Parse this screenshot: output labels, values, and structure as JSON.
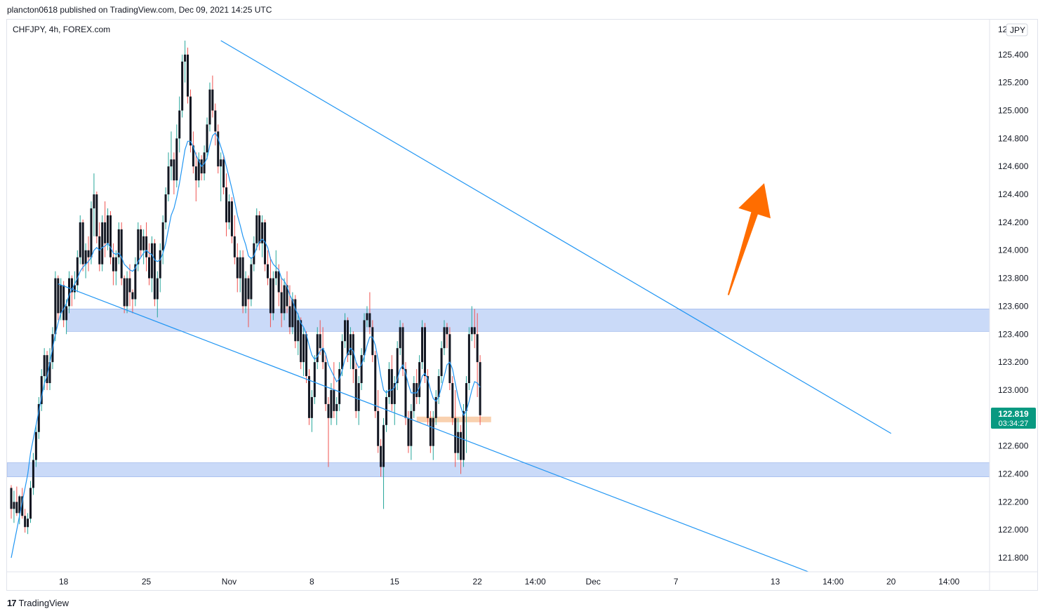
{
  "header": {
    "text": "plancton0618 published on TradingView.com, Dec 09, 2021 14:25 UTC"
  },
  "footer": {
    "brand": "TradingView",
    "logo_glyph": "17"
  },
  "chart_data": {
    "type": "candlestick",
    "symbol_label": "CHFJPY, 4h, FOREX.com",
    "currency_badge": "JPY",
    "currency_badge_partial": "12",
    "y_ticks": [
      "125.400",
      "125.200",
      "125.000",
      "124.800",
      "124.600",
      "124.400",
      "124.200",
      "124.000",
      "123.800",
      "123.600",
      "123.400",
      "123.200",
      "123.000",
      "122.800",
      "122.600",
      "122.400",
      "122.200",
      "122.000",
      "121.800"
    ],
    "y_tick_values": [
      125.4,
      125.2,
      125.0,
      124.8,
      124.6,
      124.4,
      124.2,
      124.0,
      123.8,
      123.6,
      123.4,
      123.2,
      123.0,
      122.8,
      122.6,
      122.4,
      122.2,
      122.0,
      121.8
    ],
    "ylim": [
      121.7,
      125.65
    ],
    "x_ticks": [
      {
        "label": "18",
        "bar": 19
      },
      {
        "label": "25",
        "bar": 49
      },
      {
        "label": "Nov",
        "bar": 79
      },
      {
        "label": "8",
        "bar": 109
      },
      {
        "label": "15",
        "bar": 139
      },
      {
        "label": "22",
        "bar": 169
      },
      {
        "label": "14:00",
        "bar": 190
      },
      {
        "label": "Dec",
        "bar": 211
      },
      {
        "label": "7",
        "bar": 241
      },
      {
        "label": "13",
        "bar": 277
      },
      {
        "label": "14:00",
        "bar": 298
      },
      {
        "label": "20",
        "bar": 319
      },
      {
        "label": "14:00",
        "bar": 340
      }
    ],
    "last_price": "122.819",
    "last_price_value": 122.819,
    "countdown": "03:34:27",
    "colors": {
      "up": "#26a69a",
      "down": "#ef5350",
      "body": "#131722",
      "ma": "#2196f3",
      "zone": "#b8cdf5",
      "zone_border": "#8aa8e8",
      "support_small": "#f8c9a1",
      "arrow": "#ff6d00",
      "trendline": "#2196f3",
      "price_badge": "#089981"
    },
    "ohlc": [
      [
        122.3,
        122.32,
        122.08,
        122.15
      ],
      [
        122.15,
        122.28,
        122.05,
        122.2
      ],
      [
        122.2,
        122.31,
        122.1,
        122.12
      ],
      [
        122.12,
        122.25,
        122.04,
        122.24
      ],
      [
        122.24,
        122.3,
        122.08,
        122.1
      ],
      [
        122.1,
        122.15,
        121.98,
        122.02
      ],
      [
        122.02,
        122.12,
        121.97,
        122.08
      ],
      [
        122.08,
        122.35,
        122.05,
        122.3
      ],
      [
        122.3,
        122.55,
        122.25,
        122.5
      ],
      [
        122.5,
        122.75,
        122.45,
        122.7
      ],
      [
        122.7,
        122.95,
        122.65,
        122.9
      ],
      [
        122.9,
        123.15,
        122.85,
        123.1
      ],
      [
        123.1,
        123.3,
        123.0,
        123.25
      ],
      [
        123.25,
        123.28,
        123.0,
        123.05
      ],
      [
        123.05,
        123.3,
        123.0,
        123.2
      ],
      [
        123.2,
        123.45,
        123.15,
        123.4
      ],
      [
        123.4,
        123.85,
        123.35,
        123.8
      ],
      [
        123.8,
        123.82,
        123.5,
        123.55
      ],
      [
        123.55,
        123.8,
        123.5,
        123.75
      ],
      [
        123.75,
        123.78,
        123.45,
        123.5
      ],
      [
        123.5,
        123.65,
        123.4,
        123.6
      ],
      [
        123.6,
        123.85,
        123.55,
        123.8
      ],
      [
        123.8,
        123.82,
        123.6,
        123.7
      ],
      [
        123.7,
        123.85,
        123.65,
        123.75
      ],
      [
        123.75,
        124.0,
        123.7,
        123.95
      ],
      [
        123.95,
        124.25,
        123.9,
        124.2
      ],
      [
        124.2,
        124.22,
        123.85,
        123.9
      ],
      [
        123.9,
        124.05,
        123.8,
        124.0
      ],
      [
        124.0,
        124.1,
        123.85,
        123.95
      ],
      [
        123.95,
        124.35,
        123.9,
        124.3
      ],
      [
        124.3,
        124.55,
        124.1,
        124.4
      ],
      [
        124.4,
        124.42,
        124.05,
        124.1
      ],
      [
        124.1,
        124.2,
        123.85,
        123.9
      ],
      [
        123.9,
        124.25,
        123.85,
        124.2
      ],
      [
        124.2,
        124.35,
        123.95,
        124.05
      ],
      [
        124.05,
        124.3,
        124.0,
        124.25
      ],
      [
        124.25,
        124.28,
        123.9,
        123.95
      ],
      [
        123.95,
        124.05,
        123.75,
        123.85
      ],
      [
        123.85,
        124.0,
        123.75,
        123.95
      ],
      [
        123.95,
        124.2,
        123.9,
        124.15
      ],
      [
        124.15,
        124.2,
        123.75,
        123.8
      ],
      [
        123.8,
        123.82,
        123.55,
        123.6
      ],
      [
        123.6,
        123.85,
        123.55,
        123.8
      ],
      [
        123.8,
        123.9,
        123.6,
        123.7
      ],
      [
        123.7,
        123.72,
        123.55,
        123.65
      ],
      [
        123.65,
        123.95,
        123.6,
        123.9
      ],
      [
        123.9,
        124.2,
        123.85,
        124.15
      ],
      [
        124.15,
        124.18,
        123.95,
        124.0
      ],
      [
        124.0,
        124.15,
        123.9,
        124.1
      ],
      [
        124.1,
        124.2,
        123.85,
        123.95
      ],
      [
        123.95,
        124.05,
        123.75,
        123.8
      ],
      [
        123.8,
        124.1,
        123.7,
        124.05
      ],
      [
        124.05,
        124.08,
        123.6,
        123.65
      ],
      [
        123.65,
        123.85,
        123.52,
        123.8
      ],
      [
        123.8,
        124.05,
        123.7,
        124.0
      ],
      [
        124.0,
        124.25,
        123.9,
        124.2
      ],
      [
        124.2,
        124.45,
        124.15,
        124.4
      ],
      [
        124.4,
        124.7,
        124.35,
        124.6
      ],
      [
        124.6,
        124.85,
        124.5,
        124.65
      ],
      [
        124.65,
        124.7,
        124.4,
        124.5
      ],
      [
        124.5,
        124.9,
        124.45,
        124.8
      ],
      [
        124.8,
        125.1,
        124.7,
        125.0
      ],
      [
        125.0,
        125.4,
        124.95,
        125.35
      ],
      [
        125.35,
        125.5,
        125.2,
        125.4
      ],
      [
        125.4,
        125.45,
        125.05,
        125.1
      ],
      [
        125.1,
        125.15,
        124.7,
        124.75
      ],
      [
        124.75,
        124.85,
        124.55,
        124.6
      ],
      [
        124.6,
        124.7,
        124.35,
        124.5
      ],
      [
        124.5,
        124.7,
        124.45,
        124.65
      ],
      [
        124.65,
        124.68,
        124.5,
        124.55
      ],
      [
        124.55,
        124.75,
        124.5,
        124.7
      ],
      [
        124.7,
        124.95,
        124.65,
        124.9
      ],
      [
        124.9,
        125.2,
        124.85,
        125.15
      ],
      [
        125.15,
        125.25,
        124.95,
        125.0
      ],
      [
        125.0,
        125.05,
        124.75,
        124.85
      ],
      [
        124.85,
        124.9,
        124.55,
        124.6
      ],
      [
        124.6,
        124.7,
        124.35,
        124.65
      ],
      [
        124.65,
        124.68,
        124.4,
        124.45
      ],
      [
        124.45,
        124.55,
        124.1,
        124.2
      ],
      [
        124.2,
        124.4,
        124.15,
        124.35
      ],
      [
        124.35,
        124.38,
        124.05,
        124.1
      ],
      [
        124.1,
        124.25,
        123.9,
        123.95
      ],
      [
        123.95,
        124.05,
        123.7,
        123.8
      ],
      [
        123.8,
        124.0,
        123.7,
        123.95
      ],
      [
        123.95,
        124.0,
        123.55,
        123.6
      ],
      [
        123.6,
        123.85,
        123.55,
        123.8
      ],
      [
        123.8,
        123.82,
        123.45,
        123.65
      ],
      [
        123.65,
        123.95,
        123.6,
        123.9
      ],
      [
        123.9,
        124.1,
        123.85,
        124.05
      ],
      [
        124.05,
        124.3,
        124.0,
        124.25
      ],
      [
        124.25,
        124.28,
        124.0,
        124.05
      ],
      [
        124.05,
        124.25,
        123.95,
        124.2
      ],
      [
        124.2,
        124.22,
        123.85,
        123.9
      ],
      [
        123.9,
        124.0,
        123.75,
        123.8
      ],
      [
        123.8,
        123.95,
        123.45,
        123.55
      ],
      [
        123.55,
        123.85,
        123.5,
        123.8
      ],
      [
        123.8,
        124.0,
        123.75,
        123.85
      ],
      [
        123.85,
        123.9,
        123.6,
        123.7
      ],
      [
        123.7,
        123.8,
        123.45,
        123.55
      ],
      [
        123.55,
        123.8,
        123.5,
        123.75
      ],
      [
        123.75,
        123.85,
        123.55,
        123.6
      ],
      [
        123.6,
        123.75,
        123.4,
        123.45
      ],
      [
        123.45,
        123.7,
        123.4,
        123.65
      ],
      [
        123.65,
        123.68,
        123.3,
        123.35
      ],
      [
        123.35,
        123.55,
        123.25,
        123.5
      ],
      [
        123.5,
        123.52,
        123.15,
        123.2
      ],
      [
        123.2,
        123.45,
        123.1,
        123.4
      ],
      [
        123.4,
        123.42,
        123.05,
        123.1
      ],
      [
        123.1,
        123.15,
        122.75,
        122.8
      ],
      [
        122.8,
        123.0,
        122.7,
        122.95
      ],
      [
        122.95,
        123.25,
        122.9,
        123.2
      ],
      [
        123.2,
        123.45,
        123.15,
        123.4
      ],
      [
        123.4,
        123.5,
        123.25,
        123.3
      ],
      [
        123.3,
        123.45,
        123.15,
        123.2
      ],
      [
        123.2,
        123.25,
        122.85,
        122.9
      ],
      [
        122.9,
        122.95,
        122.45,
        122.8
      ],
      [
        122.8,
        123.05,
        122.75,
        123.0
      ],
      [
        123.0,
        123.2,
        122.8,
        122.85
      ],
      [
        122.85,
        122.95,
        122.75,
        122.9
      ],
      [
        122.9,
        123.2,
        122.85,
        123.15
      ],
      [
        123.15,
        123.4,
        123.1,
        123.35
      ],
      [
        123.35,
        123.55,
        123.3,
        123.5
      ],
      [
        123.5,
        123.52,
        123.2,
        123.25
      ],
      [
        123.25,
        123.45,
        123.15,
        123.4
      ],
      [
        123.4,
        123.42,
        123.05,
        123.15
      ],
      [
        123.15,
        123.2,
        122.8,
        122.85
      ],
      [
        122.85,
        123.1,
        122.75,
        123.05
      ],
      [
        123.05,
        123.3,
        123.0,
        123.25
      ],
      [
        123.25,
        123.55,
        123.2,
        123.5
      ],
      [
        123.5,
        123.6,
        123.45,
        123.55
      ],
      [
        123.55,
        123.7,
        123.4,
        123.45
      ],
      [
        123.45,
        123.5,
        123.2,
        123.25
      ],
      [
        123.25,
        123.28,
        122.8,
        122.85
      ],
      [
        122.85,
        123.0,
        122.55,
        122.6
      ],
      [
        122.6,
        122.65,
        122.38,
        122.45
      ],
      [
        122.45,
        122.8,
        122.15,
        122.75
      ],
      [
        122.75,
        123.0,
        122.7,
        122.95
      ],
      [
        122.95,
        123.2,
        122.9,
        123.15
      ],
      [
        123.15,
        123.25,
        122.85,
        122.9
      ],
      [
        122.9,
        123.1,
        122.75,
        123.05
      ],
      [
        123.05,
        123.35,
        123.0,
        123.3
      ],
      [
        123.3,
        123.5,
        123.25,
        123.45
      ],
      [
        123.45,
        123.48,
        123.1,
        123.15
      ],
      [
        123.15,
        123.2,
        122.75,
        122.8
      ],
      [
        122.8,
        122.85,
        122.55,
        122.6
      ],
      [
        122.6,
        122.9,
        122.5,
        122.85
      ],
      [
        122.85,
        123.1,
        122.8,
        123.05
      ],
      [
        123.05,
        123.15,
        122.9,
        122.95
      ],
      [
        122.95,
        123.25,
        122.9,
        123.2
      ],
      [
        123.2,
        123.5,
        123.15,
        123.45
      ],
      [
        123.45,
        123.48,
        123.05,
        123.1
      ],
      [
        123.1,
        123.15,
        122.75,
        122.8
      ],
      [
        122.8,
        122.85,
        122.55,
        122.6
      ],
      [
        122.6,
        122.85,
        122.5,
        122.8
      ],
      [
        122.8,
        123.0,
        122.75,
        122.95
      ],
      [
        122.95,
        123.15,
        122.9,
        123.1
      ],
      [
        123.1,
        123.35,
        123.05,
        123.3
      ],
      [
        123.3,
        123.5,
        123.25,
        123.45
      ],
      [
        123.45,
        123.48,
        123.3,
        123.4
      ],
      [
        123.4,
        123.45,
        123.0,
        123.05
      ],
      [
        123.05,
        123.1,
        122.75,
        122.8
      ],
      [
        122.8,
        123.0,
        122.45,
        122.55
      ],
      [
        122.55,
        122.8,
        122.5,
        122.7
      ],
      [
        122.7,
        122.75,
        122.4,
        122.5
      ],
      [
        122.5,
        122.9,
        122.45,
        122.85
      ],
      [
        122.85,
        123.1,
        122.55,
        123.05
      ],
      [
        123.05,
        123.45,
        123.0,
        123.4
      ],
      [
        123.4,
        123.6,
        123.35,
        123.45
      ],
      [
        123.45,
        123.58,
        123.3,
        123.4
      ],
      [
        123.4,
        123.55,
        122.95,
        123.2
      ],
      [
        123.2,
        123.25,
        122.75,
        122.82
      ]
    ],
    "ma_values": [
      121.8,
      121.9,
      122.0,
      122.1,
      122.2,
      122.3,
      122.4,
      122.55,
      122.65,
      122.75,
      122.85,
      122.95,
      123.05,
      123.1,
      123.2,
      123.3,
      123.4,
      123.48,
      123.55,
      123.58,
      123.62,
      123.68,
      123.72,
      123.76,
      123.8,
      123.85,
      123.88,
      123.9,
      123.92,
      123.95,
      124.0,
      124.02,
      124.0,
      124.02,
      124.03,
      124.05,
      124.02,
      123.98,
      123.97,
      123.98,
      123.95,
      123.9,
      123.88,
      123.86,
      123.85,
      123.87,
      123.92,
      123.95,
      123.98,
      124.0,
      123.98,
      123.97,
      123.93,
      123.92,
      123.93,
      123.98,
      124.05,
      124.15,
      124.25,
      124.3,
      124.38,
      124.48,
      124.6,
      124.72,
      124.78,
      124.78,
      124.74,
      124.68,
      124.64,
      124.6,
      124.62,
      124.66,
      124.75,
      124.82,
      124.84,
      124.8,
      124.74,
      124.68,
      124.6,
      124.52,
      124.44,
      124.35,
      124.25,
      124.18,
      124.1,
      124.04,
      123.96,
      123.94,
      123.96,
      124.02,
      124.06,
      124.08,
      124.06,
      124.02,
      123.94,
      123.9,
      123.88,
      123.86,
      123.8,
      123.78,
      123.74,
      123.68,
      123.64,
      123.58,
      123.54,
      123.48,
      123.45,
      123.4,
      123.32,
      123.25,
      123.22,
      123.24,
      123.28,
      123.3,
      123.26,
      123.18,
      123.14,
      123.1,
      123.06,
      123.08,
      123.14,
      123.22,
      123.26,
      123.3,
      123.28,
      123.2,
      123.16,
      123.18,
      123.24,
      123.32,
      123.38,
      123.38,
      123.32,
      123.22,
      123.1,
      123.0,
      122.98,
      123.0,
      123.0,
      123.02,
      123.08,
      123.15,
      123.18,
      123.12,
      123.04,
      122.98,
      122.98,
      122.98,
      123.02,
      123.1,
      123.12,
      123.08,
      123.0,
      122.94,
      122.92,
      122.95,
      123.02,
      123.1,
      123.18,
      123.2,
      123.15,
      123.05,
      122.95,
      122.88,
      122.82,
      122.85,
      122.92,
      123.0,
      123.06,
      123.05,
      123.02
    ],
    "zones": [
      {
        "from": 123.42,
        "to": 123.58
      },
      {
        "from": 122.38,
        "to": 122.48
      }
    ],
    "small_support": {
      "value": 122.79,
      "bar_from": 147,
      "bar_to": 174
    },
    "trendlines": [
      {
        "bar1": 76,
        "p1": 125.5,
        "bar2": 319,
        "p2": 122.69
      },
      {
        "bar1": 17,
        "p1": 123.76,
        "bar2": 289,
        "p2": 121.7
      }
    ],
    "arrow": {
      "bar_tail": 260,
      "p_tail": 123.68,
      "bar_head": 273,
      "p_head": 124.48
    }
  }
}
